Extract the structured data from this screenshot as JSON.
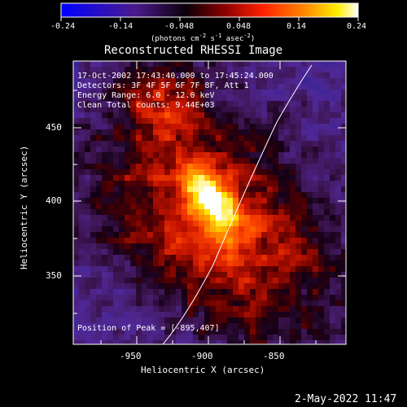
{
  "colorbar": {
    "ticks": [
      "-0.24",
      "-0.14",
      "-0.048",
      "0.048",
      "0.14",
      "0.24"
    ],
    "units_prefix": "(photons cm",
    "units_exp1": "-2",
    "units_mid1": " s",
    "units_exp2": "-1",
    "units_mid2": " asec",
    "units_exp3": "-2",
    "units_suffix": ")",
    "colors": [
      "#0000ff",
      "#4b1a8c",
      "#000000",
      "#990000",
      "#ff2200",
      "#ff8800",
      "#ffff00",
      "#ffffff"
    ]
  },
  "title": "Reconstructed RHESSI Image",
  "annotations": {
    "time": "17-Oct-2002 17:43:40.000 to 17:45:24.000",
    "detectors": "Detectors: 3F 4F 5F 6F 7F 8F, Att 1",
    "energy": "Energy Range: 6.0 - 12.0 keV",
    "clean": "Clean     Total counts: 9.44E+03",
    "peak": "Position of Peak = [-895,407]"
  },
  "axes": {
    "x_label": "Heliocentric X (arcsec)",
    "y_label": "Heliocentric Y (arcsec)",
    "x_ticks": [
      "-950",
      "-900",
      "-850"
    ],
    "y_ticks": [
      "450",
      "400",
      "350"
    ]
  },
  "footer_timestamp": "2-May-2022 11:47"
}
